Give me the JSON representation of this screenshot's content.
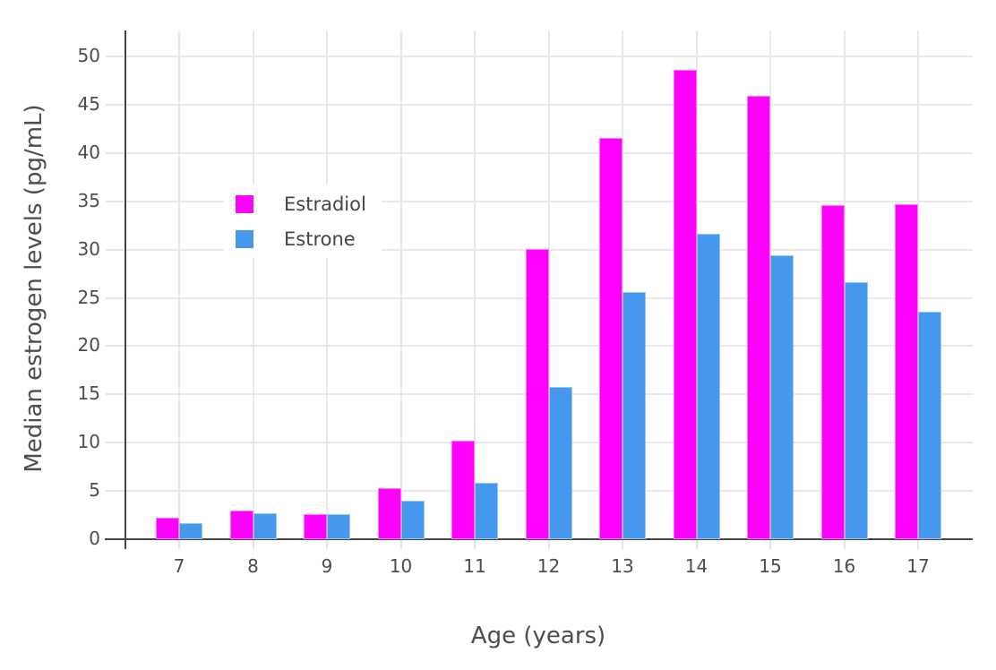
{
  "chart_data": {
    "type": "bar",
    "title": "",
    "xlabel": "Age (years)",
    "ylabel": "Median estrogen levels (pg/mL)",
    "categories": [
      "7",
      "8",
      "9",
      "10",
      "11",
      "12",
      "13",
      "14",
      "15",
      "16",
      "17"
    ],
    "series": [
      {
        "name": "Estradiol",
        "color": "#ff00ff",
        "values": [
          2.2,
          3.0,
          2.6,
          5.3,
          10.2,
          30.1,
          41.6,
          48.6,
          45.9,
          34.6,
          34.7
        ]
      },
      {
        "name": "Estrone",
        "color": "#4598ec",
        "values": [
          1.7,
          2.7,
          2.6,
          4.0,
          5.8,
          15.8,
          25.6,
          31.6,
          29.4,
          26.6,
          23.6
        ]
      }
    ],
    "ylim": [
      0,
      52.7
    ],
    "yticks": [
      0,
      5,
      10,
      15,
      20,
      25,
      30,
      35,
      40,
      45,
      50
    ],
    "grid": true,
    "legend_position": "inside-top-left",
    "colors": {
      "grid": "#e8e8e8",
      "axis_line": "#444444",
      "text": "#4d4d4d",
      "background": "#ffffff"
    }
  }
}
